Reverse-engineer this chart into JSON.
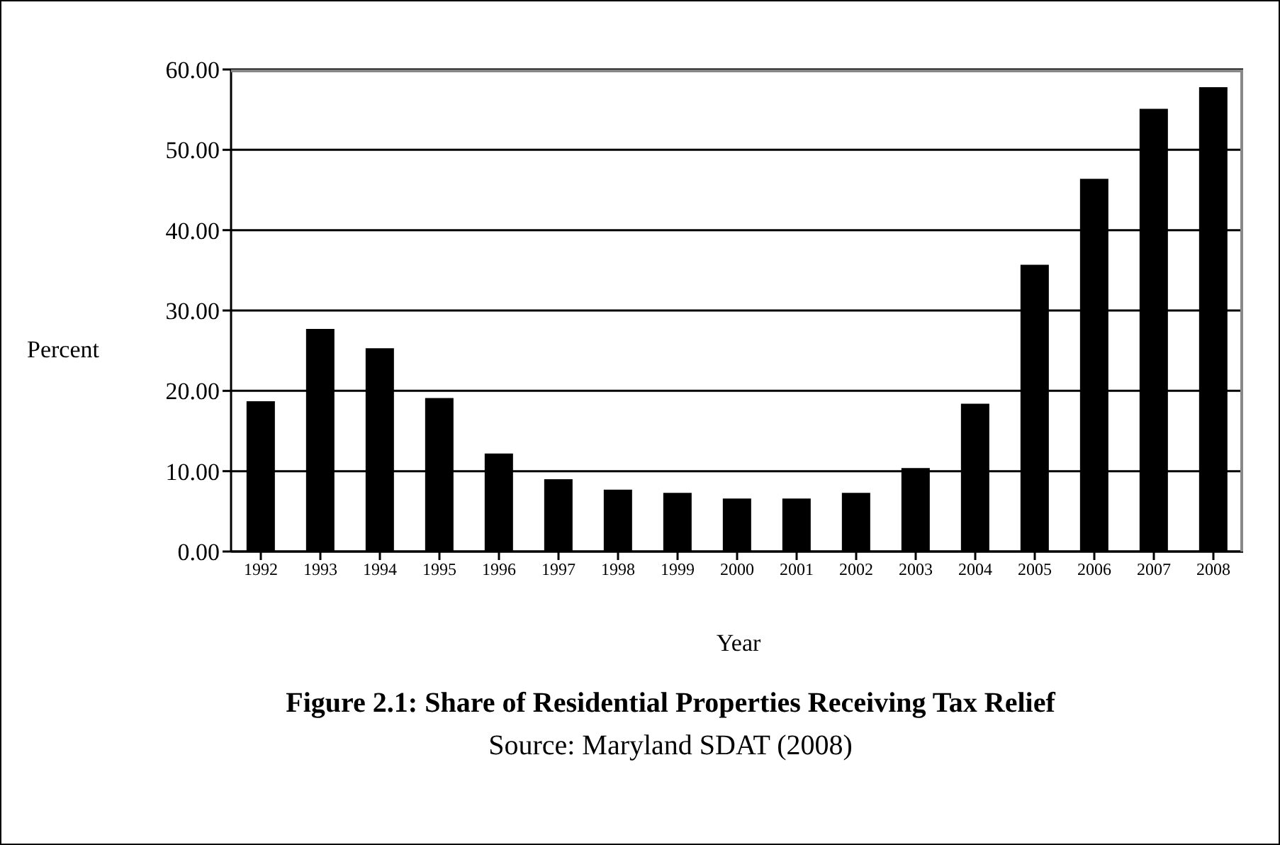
{
  "chart_data": {
    "type": "bar",
    "title": "Figure 2.1: Share of Residential Properties Receiving Tax Relief",
    "annotations": [
      "Source: Maryland SDAT (2008)"
    ],
    "xlabel": "Year",
    "ylabel": "Percent",
    "categories": [
      "1992",
      "1993",
      "1994",
      "1995",
      "1996",
      "1997",
      "1998",
      "1999",
      "2000",
      "2001",
      "2002",
      "2003",
      "2004",
      "2005",
      "2006",
      "2007",
      "2008"
    ],
    "values": [
      18.7,
      27.7,
      25.3,
      19.1,
      12.2,
      9.0,
      7.7,
      7.3,
      6.6,
      6.6,
      7.3,
      10.4,
      18.4,
      35.7,
      46.4,
      55.1,
      57.8
    ],
    "color": "#000000",
    "ylim": [
      0,
      60
    ],
    "yticks": [
      {
        "value": 0,
        "label": "0.00"
      },
      {
        "value": 10,
        "label": "10.00"
      },
      {
        "value": 20,
        "label": "20.00"
      },
      {
        "value": 30,
        "label": "30.00"
      },
      {
        "value": 40,
        "label": "40.00"
      },
      {
        "value": 50,
        "label": "50.00"
      },
      {
        "value": 60,
        "label": "60.00"
      }
    ],
    "grid": "y",
    "legend": false
  }
}
